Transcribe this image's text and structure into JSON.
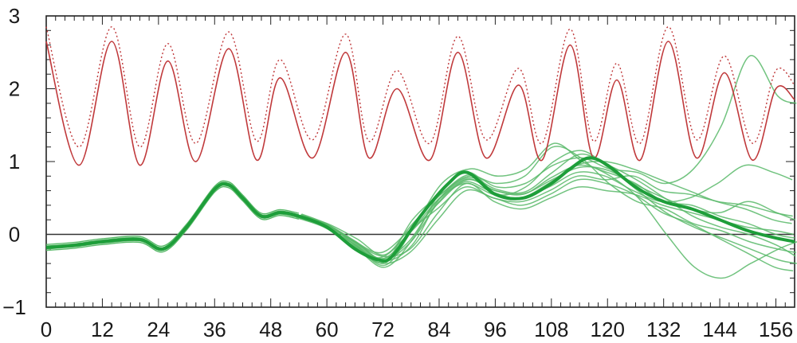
{
  "chart_data": {
    "type": "line",
    "title": "",
    "xlabel": "",
    "ylabel": "",
    "xlim": [
      0,
      160
    ],
    "ylim": [
      -1,
      3
    ],
    "x_ticks": [
      0,
      12,
      24,
      36,
      48,
      60,
      72,
      84,
      96,
      108,
      120,
      132,
      144,
      156
    ],
    "x_tick_labels": [
      "0",
      "12",
      "24",
      "36",
      "48",
      "60",
      "72",
      "84",
      "96",
      "108",
      "120",
      "132",
      "144",
      "156"
    ],
    "y_ticks": [
      -1,
      0,
      1,
      2,
      3
    ],
    "y_tick_labels": [
      "−1",
      "0",
      "1",
      "2",
      "3"
    ],
    "reference_line": 0,
    "grid": false,
    "colors": {
      "red_series": "#c0393b",
      "green_series": "#1e9e3a",
      "green_ensemble": "#58b868",
      "axis": "#222222",
      "observed_overlay": "#d4a020"
    },
    "series": [
      {
        "style": "solid",
        "color": "#c0393b",
        "x": [
          0,
          7,
          14,
          20,
          26,
          32,
          39,
          45,
          50,
          57,
          64,
          69,
          75,
          82,
          88,
          94,
          101,
          106,
          112,
          117,
          122,
          127,
          133,
          139,
          145,
          151,
          156,
          160
        ],
        "y": [
          2.65,
          0.95,
          2.65,
          0.95,
          2.38,
          1.0,
          2.55,
          1.02,
          2.15,
          1.05,
          2.5,
          1.05,
          2.0,
          1.02,
          2.5,
          1.05,
          2.05,
          1.02,
          2.6,
          1.05,
          2.12,
          1.02,
          2.65,
          1.05,
          2.22,
          1.02,
          2.0,
          1.85
        ]
      },
      {
        "style": "dotted",
        "color": "#c0393b",
        "x": [
          0,
          7,
          14,
          20,
          26,
          32,
          39,
          45,
          50,
          57,
          64,
          69,
          75,
          82,
          88,
          94,
          101,
          106,
          112,
          117,
          122,
          127,
          133,
          139,
          145,
          151,
          156,
          160
        ],
        "y": [
          2.85,
          1.2,
          2.85,
          1.2,
          2.62,
          1.25,
          2.78,
          1.28,
          2.4,
          1.3,
          2.75,
          1.28,
          2.25,
          1.25,
          2.72,
          1.3,
          2.28,
          1.25,
          2.82,
          1.28,
          2.35,
          1.25,
          2.85,
          1.3,
          2.45,
          1.25,
          2.25,
          2.05
        ]
      },
      {
        "style": "bold",
        "color": "#1e9e3a",
        "x": [
          0,
          6,
          12,
          20,
          25,
          30,
          36,
          39,
          42,
          46,
          50,
          54,
          60,
          66,
          71,
          74,
          80,
          86,
          90,
          96,
          102,
          108,
          112,
          116,
          120,
          126,
          132,
          138,
          144,
          150,
          156,
          160
        ],
        "y": [
          -0.18,
          -0.15,
          -0.1,
          -0.07,
          -0.2,
          0.1,
          0.62,
          0.68,
          0.5,
          0.25,
          0.3,
          0.25,
          0.1,
          -0.2,
          -0.35,
          -0.3,
          0.25,
          0.7,
          0.85,
          0.55,
          0.5,
          0.7,
          0.9,
          1.05,
          0.95,
          0.65,
          0.45,
          0.35,
          0.2,
          0.05,
          -0.05,
          -0.1
        ]
      }
    ],
    "ensemble": {
      "start_x": 54,
      "members": [
        {
          "dx": 0.0,
          "x": [
            54,
            60,
            66,
            72,
            78,
            84,
            90,
            96,
            102,
            108,
            114,
            120,
            126,
            132,
            138,
            144,
            150,
            156,
            160
          ],
          "y": [
            0.25,
            0.12,
            -0.12,
            -0.35,
            -0.1,
            0.45,
            0.75,
            0.6,
            0.55,
            0.78,
            0.95,
            0.85,
            0.7,
            0.45,
            0.4,
            0.25,
            0.15,
            0.0,
            -0.05
          ]
        },
        {
          "dx": 0.5,
          "x": [
            54,
            60,
            66,
            72,
            78,
            84,
            90,
            96,
            102,
            108,
            114,
            120,
            126,
            132,
            138,
            144,
            150,
            156,
            160
          ],
          "y": [
            0.27,
            0.1,
            -0.2,
            -0.45,
            -0.05,
            0.6,
            0.85,
            0.55,
            0.65,
            1.0,
            1.15,
            0.9,
            0.6,
            0.3,
            0.1,
            -0.05,
            -0.2,
            -0.35,
            -0.4
          ]
        },
        {
          "dx": -0.4,
          "x": [
            54,
            60,
            66,
            72,
            78,
            84,
            90,
            96,
            102,
            108,
            114,
            120,
            126,
            132,
            138,
            144,
            150,
            156,
            160
          ],
          "y": [
            0.24,
            0.15,
            -0.08,
            -0.25,
            0.05,
            0.35,
            0.65,
            0.5,
            0.45,
            0.6,
            0.8,
            0.75,
            0.8,
            0.6,
            0.55,
            0.45,
            0.4,
            0.3,
            0.25
          ]
        },
        {
          "dx": 0.3,
          "x": [
            54,
            60,
            66,
            72,
            78,
            84,
            90,
            96,
            102,
            108,
            114,
            120,
            126,
            132,
            138,
            144,
            150,
            156,
            160
          ],
          "y": [
            0.26,
            0.08,
            -0.15,
            -0.38,
            0.2,
            0.55,
            0.8,
            0.7,
            0.8,
            1.2,
            1.05,
            0.7,
            0.45,
            0.35,
            0.15,
            0.05,
            -0.1,
            -0.2,
            -0.25
          ]
        },
        {
          "dx": -0.2,
          "x": [
            54,
            60,
            66,
            72,
            78,
            84,
            90,
            96,
            102,
            108,
            114,
            120,
            126,
            132,
            138,
            144,
            150,
            156,
            160
          ],
          "y": [
            0.25,
            0.14,
            -0.1,
            -0.3,
            -0.2,
            0.3,
            0.7,
            0.45,
            0.35,
            0.5,
            0.65,
            0.6,
            0.55,
            0.4,
            0.3,
            0.2,
            0.1,
            0.05,
            0.0
          ]
        },
        {
          "dx": 0.6,
          "x": [
            54,
            60,
            66,
            72,
            78,
            84,
            90,
            96,
            102,
            108,
            114,
            120,
            126,
            132,
            138,
            144,
            150,
            156,
            160
          ],
          "y": [
            0.28,
            0.12,
            -0.18,
            -0.42,
            0.1,
            0.7,
            0.9,
            0.8,
            0.9,
            1.25,
            1.0,
            0.8,
            0.5,
            0.0,
            -0.45,
            -0.6,
            -0.4,
            -0.2,
            -0.1
          ]
        },
        {
          "dx": -0.6,
          "x": [
            54,
            60,
            66,
            72,
            78,
            84,
            90,
            96,
            102,
            108,
            114,
            120,
            126,
            132,
            138,
            144,
            150,
            156,
            160
          ],
          "y": [
            0.23,
            0.1,
            -0.14,
            -0.32,
            0.0,
            0.4,
            0.72,
            0.58,
            0.5,
            0.7,
            0.95,
            1.0,
            0.9,
            0.75,
            0.6,
            0.45,
            0.35,
            0.2,
            0.15
          ]
        },
        {
          "dx": 0.2,
          "x": [
            54,
            60,
            66,
            72,
            78,
            84,
            90,
            96,
            102,
            108,
            114,
            120,
            126,
            132,
            138,
            144,
            150,
            156,
            160
          ],
          "y": [
            0.26,
            0.13,
            -0.1,
            -0.36,
            -0.15,
            0.5,
            0.78,
            0.62,
            0.58,
            0.85,
            1.1,
            0.95,
            0.75,
            0.5,
            0.25,
            0.1,
            0.0,
            -0.15,
            -0.3
          ]
        },
        {
          "dx": -0.3,
          "x": [
            54,
            60,
            66,
            72,
            78,
            84,
            90,
            96,
            102,
            108,
            114,
            120,
            126,
            132,
            138,
            144,
            150,
            156,
            160
          ],
          "y": [
            0.24,
            0.11,
            -0.16,
            -0.4,
            -0.25,
            0.2,
            0.6,
            0.5,
            0.4,
            0.55,
            0.75,
            0.7,
            0.55,
            0.3,
            0.15,
            -0.05,
            -0.25,
            -0.45,
            -0.5
          ]
        },
        {
          "dx": 0.4,
          "x": [
            54,
            60,
            66,
            72,
            78,
            84,
            90,
            96,
            102,
            108,
            114,
            120,
            126,
            132,
            138,
            144,
            150,
            156,
            160
          ],
          "y": [
            0.27,
            0.14,
            -0.06,
            -0.28,
            0.15,
            0.55,
            0.82,
            0.65,
            0.7,
            0.95,
            1.05,
            0.9,
            0.85,
            0.7,
            0.9,
            1.5,
            2.45,
            1.9,
            1.8
          ]
        },
        {
          "dx": -0.5,
          "x": [
            54,
            60,
            66,
            72,
            78,
            84,
            90,
            96,
            102,
            108,
            114,
            120,
            126,
            132,
            138,
            144,
            150,
            156,
            160
          ],
          "y": [
            0.24,
            0.1,
            -0.12,
            -0.34,
            -0.1,
            0.45,
            0.7,
            0.55,
            0.5,
            0.65,
            0.85,
            0.8,
            0.6,
            0.45,
            0.5,
            0.7,
            0.95,
            0.85,
            0.75
          ]
        },
        {
          "dx": 0.1,
          "x": [
            54,
            60,
            66,
            72,
            78,
            84,
            90,
            96,
            102,
            108,
            114,
            120,
            126,
            132,
            138,
            144,
            150,
            156,
            160
          ],
          "y": [
            0.25,
            0.12,
            -0.11,
            -0.33,
            0.05,
            0.5,
            0.76,
            0.6,
            0.56,
            0.75,
            0.92,
            0.88,
            0.68,
            0.5,
            0.35,
            0.3,
            0.45,
            0.3,
            0.2
          ]
        }
      ]
    }
  }
}
